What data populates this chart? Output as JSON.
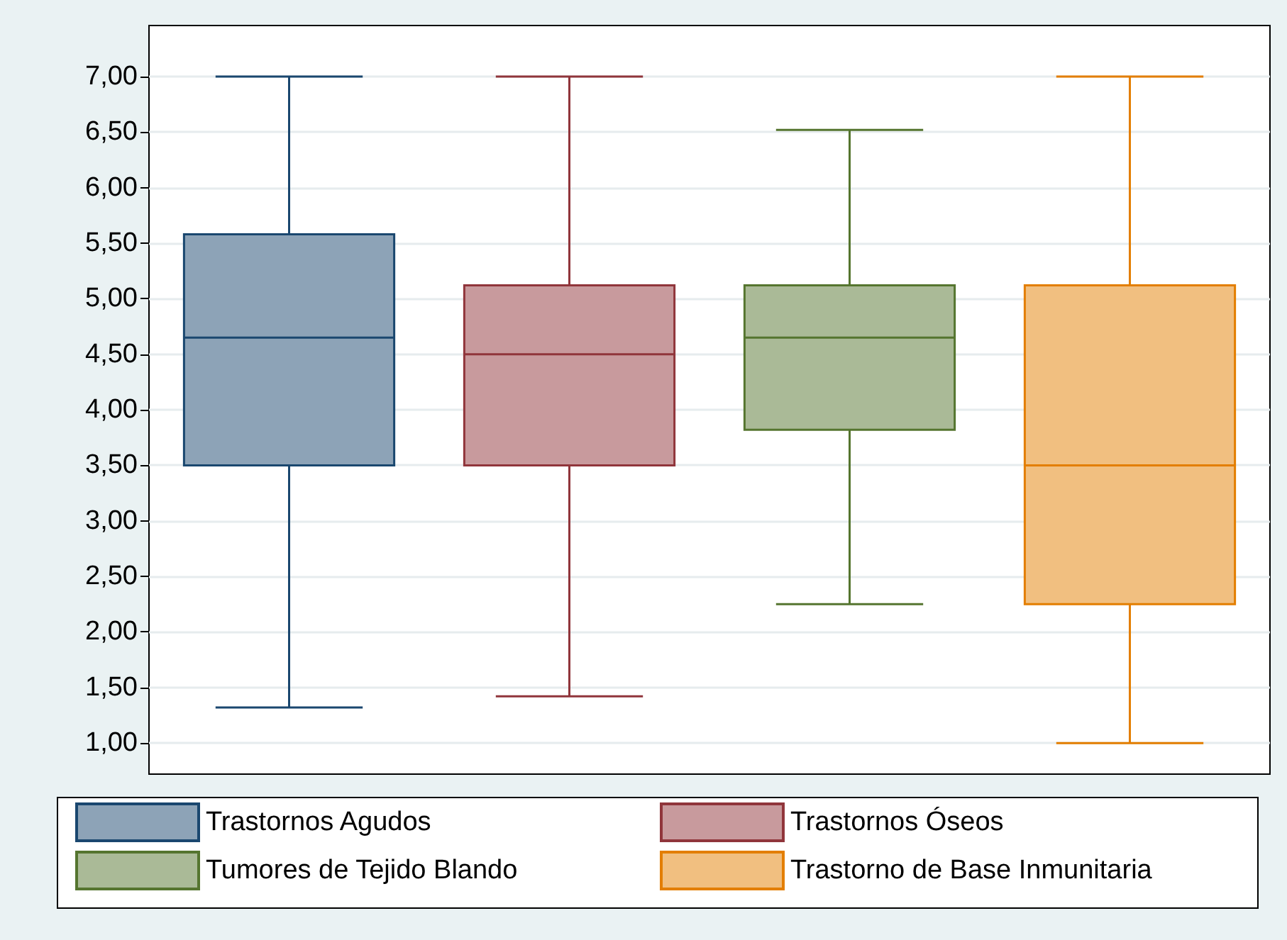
{
  "chart_data": {
    "type": "box",
    "categories": [
      null,
      null,
      null,
      null
    ],
    "series": [
      {
        "name": "Trastornos Agudos",
        "color": "#1a476f",
        "boxes": [
          {
            "low": 1.32,
            "q1": 3.5,
            "median": 4.65,
            "q3": 5.58,
            "high": 7.0
          },
          null,
          null,
          null
        ]
      },
      {
        "name": "Trastornos Óseos",
        "color": "#90353b",
        "boxes": [
          null,
          {
            "low": 1.42,
            "q1": 3.5,
            "median": 4.5,
            "q3": 5.12,
            "high": 7.0
          },
          null,
          null
        ]
      },
      {
        "name": "Tumores de Tejido Blando",
        "color": "#55752f",
        "boxes": [
          null,
          null,
          {
            "low": 2.25,
            "q1": 3.82,
            "median": 4.65,
            "q3": 5.12,
            "high": 6.52
          },
          null
        ]
      },
      {
        "name": "Trastorno de Base Inmunitaria",
        "color": "#e37e00",
        "boxes": [
          null,
          null,
          null,
          {
            "low": 1.0,
            "q1": 2.25,
            "median": 3.5,
            "q3": 5.12,
            "high": 7.0
          }
        ]
      }
    ],
    "ylim": [
      0.72,
      7.46
    ],
    "yticks": [
      {
        "value": 1,
        "label": "1,00"
      },
      {
        "value": 1.5,
        "label": "1,50"
      },
      {
        "value": 2,
        "label": "2,00"
      },
      {
        "value": 2.5,
        "label": "2,50"
      },
      {
        "value": 3,
        "label": "3,00"
      },
      {
        "value": 3.5,
        "label": "3,50"
      },
      {
        "value": 4,
        "label": "4,00"
      },
      {
        "value": 4.5,
        "label": "4,50"
      },
      {
        "value": 5,
        "label": "5,00"
      },
      {
        "value": 5.5,
        "label": "5,50"
      },
      {
        "value": 6,
        "label": "6,00"
      },
      {
        "value": 6.5,
        "label": "6,50"
      },
      {
        "value": 7,
        "label": "7,00"
      }
    ],
    "grid": "y",
    "legend": "bottom"
  }
}
